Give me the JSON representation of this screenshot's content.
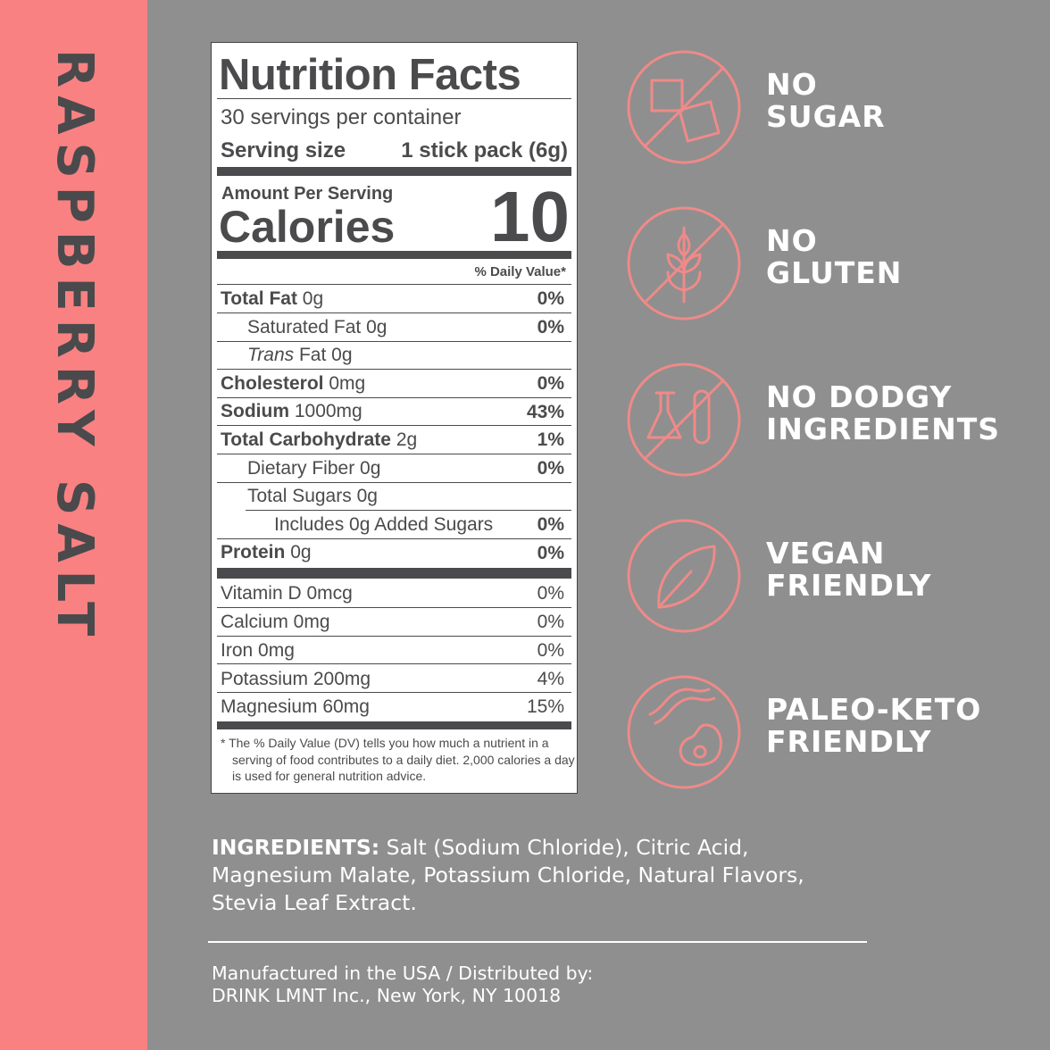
{
  "side_label": "RASPBERRY SALT",
  "nutrition": {
    "title": "Nutrition Facts",
    "servings": "30 servings per container",
    "serving_size_label": "Serving size",
    "serving_size_value": "1 stick pack (6g)",
    "amount_per_serving": "Amount Per Serving",
    "calories_label": "Calories",
    "calories_value": "10",
    "daily_value_header": "% Daily Value*",
    "rows": [
      {
        "label": "Total Fat",
        "amount": "0g",
        "dv": "0%"
      },
      {
        "label": "Saturated Fat",
        "amount": "0g",
        "dv": "0%"
      },
      {
        "italic": "Trans",
        "label": "Fat",
        "amount": "0g"
      },
      {
        "label": "Cholesterol",
        "amount": "0mg",
        "dv": "0%"
      },
      {
        "label": "Sodium",
        "amount": "1000mg",
        "dv": "43%"
      },
      {
        "label": "Total Carbohydrate",
        "amount": "2g",
        "dv": "1%"
      },
      {
        "label": "Dietary Fiber",
        "amount": "0g",
        "dv": "0%"
      },
      {
        "label": "Total Sugars",
        "amount": "0g"
      },
      {
        "label": "Includes 0g Added Sugars",
        "dv": "0%"
      },
      {
        "label": "Protein",
        "amount": "0g",
        "dv": "0%"
      }
    ],
    "vitamins": [
      {
        "label": "Vitamin D 0mcg",
        "dv": "0%"
      },
      {
        "label": "Calcium 0mg",
        "dv": "0%"
      },
      {
        "label": "Iron 0mg",
        "dv": "0%"
      },
      {
        "label": "Potassium 200mg",
        "dv": "4%"
      },
      {
        "label": "Magnesium 60mg",
        "dv": "15%"
      }
    ],
    "footnote": "* The % Daily Value (DV) tells you how much a nutrient in a serving of food contributes to a daily diet. 2,000 calories a day is used for general nutrition advice."
  },
  "claims": [
    [
      "NO",
      "SUGAR"
    ],
    [
      "NO",
      "GLUTEN"
    ],
    [
      "NO DODGY",
      "INGREDIENTS"
    ],
    [
      "VEGAN",
      "FRIENDLY"
    ],
    [
      "PALEO-KETO",
      "FRIENDLY"
    ]
  ],
  "ingredients": {
    "label": "INGREDIENTS:",
    "text": "Salt (Sodium Chloride), Citric Acid, Magnesium Malate, Potassium Chloride, Natural Flavors, Stevia Leaf Extract."
  },
  "manufacturer": [
    "Manufactured in the USA / Distributed by:",
    "DRINK LMNT Inc., New York, NY 10018"
  ]
}
